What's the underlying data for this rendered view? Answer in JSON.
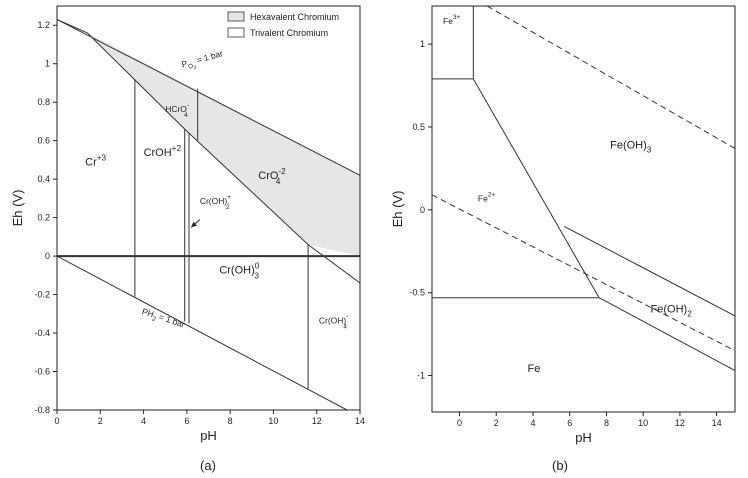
{
  "panels": [
    {
      "id": "a",
      "caption": "(a)",
      "xlabel": "pH",
      "ylabel": "Eh (V)",
      "xlim": [
        0,
        14
      ],
      "ylim": [
        -0.8,
        1.3
      ],
      "xticks": [
        "0",
        "2",
        "4",
        "6",
        "8",
        "10",
        "12",
        "14"
      ],
      "xtick_values": [
        0,
        2,
        4,
        6,
        8,
        10,
        12,
        14
      ],
      "yticks": [
        "-0.8",
        "-0.6",
        "-0.4",
        "-0.2",
        "0",
        "0.2",
        "0.4",
        "0.6",
        "0.8",
        "1",
        "1.2"
      ],
      "ytick_values": [
        -0.8,
        -0.6,
        -0.4,
        -0.2,
        0,
        0.2,
        0.4,
        0.6,
        0.8,
        1,
        1.2
      ],
      "legend": {
        "position": "top-right",
        "entries": [
          {
            "label": "Hexavalent Chromium",
            "fill": "#e6e6e6"
          },
          {
            "label": "Trivalent Chromium",
            "fill": "#ffffff"
          }
        ]
      },
      "hexavalent_region": [
        [
          1.4,
          1.16
        ],
        [
          14,
          0.42
        ],
        [
          14,
          0
        ],
        [
          11.6,
          0.06
        ],
        [
          5.9,
          0.66
        ],
        [
          1.4,
          1.16
        ]
      ],
      "lines": [
        {
          "name": "o2-line",
          "points": [
            [
              0,
              1.23
            ],
            [
              14,
              0.42
            ]
          ]
        },
        {
          "name": "hcr-boundary",
          "points": [
            [
              0,
              1.23
            ],
            [
              1.4,
              1.16
            ],
            [
              5.9,
              0.66
            ],
            [
              11.6,
              0.06
            ],
            [
              14,
              -0.14
            ]
          ]
        },
        {
          "name": "h2-line",
          "points": [
            [
              0,
              0
            ],
            [
              13.4,
              -0.8
            ]
          ]
        },
        {
          "name": "zero-line",
          "points": [
            [
              0,
              0
            ],
            [
              14,
              0
            ]
          ],
          "bold": true
        },
        {
          "name": "boundary-ph3.6",
          "points": [
            [
              3.6,
              0.92
            ],
            [
              3.6,
              -0.21
            ]
          ]
        },
        {
          "name": "boundary-ph5.9",
          "points": [
            [
              5.9,
              0.66
            ],
            [
              5.9,
              -0.34
            ]
          ]
        },
        {
          "name": "boundary-ph6.1",
          "points": [
            [
              6.1,
              0.64
            ],
            [
              6.1,
              -0.35
            ]
          ]
        },
        {
          "name": "boundary-ph6.5",
          "points": [
            [
              6.5,
              0.87
            ],
            [
              6.5,
              0.6
            ]
          ]
        },
        {
          "name": "boundary-ph11.6",
          "points": [
            [
              11.6,
              0.06
            ],
            [
              11.6,
              -0.69
            ]
          ]
        }
      ],
      "line_labels": [
        {
          "main": "P",
          "sub": "O",
          "sub2": "2",
          "rest": " = 1 bar",
          "x": 5.8,
          "y": 0.98,
          "rotate": -16
        },
        {
          "main": "PH",
          "sub": "2",
          "sub2": "",
          "rest": " = 1 bar",
          "x": 3.9,
          "y": -0.3,
          "rotate": 18
        }
      ],
      "region_labels": [
        {
          "text": "Cr",
          "sup": "+3",
          "x": 1.3,
          "y": 0.47
        },
        {
          "text": "CrOH",
          "sup": "+2",
          "x": 4.0,
          "y": 0.52
        },
        {
          "text": "HCrO",
          "sub": "4",
          "sup": "-",
          "x": 5.0,
          "y": 0.75,
          "small": true
        },
        {
          "text": "CrO",
          "sub": "4",
          "sup": "-2",
          "x": 9.3,
          "y": 0.4
        },
        {
          "text": "Cr(OH)",
          "sub": "2",
          "sup": "+",
          "x": 6.6,
          "y": 0.27,
          "small": true
        },
        {
          "text": "Cr(OH)",
          "sub": "3",
          "sup": "0",
          "x": 7.5,
          "y": -0.09
        },
        {
          "text": "Cr(OH)",
          "sub": "4",
          "sup": "-",
          "x": 12.1,
          "y": -0.35,
          "small": true
        }
      ],
      "arrow": {
        "from": [
          6.6,
          0.19
        ],
        "to": [
          6.2,
          0.15
        ]
      }
    },
    {
      "id": "b",
      "caption": "(b)",
      "xlabel": "pH",
      "ylabel": "Eh (V)",
      "xlim": [
        -1.5,
        15
      ],
      "ylim": [
        -1.22,
        1.23
      ],
      "xticks": [
        "0",
        "2",
        "4",
        "6",
        "8",
        "10",
        "12",
        "14"
      ],
      "xtick_values": [
        0,
        2,
        4,
        6,
        8,
        10,
        12,
        14
      ],
      "yticks": [
        "-1",
        "-0.5",
        "0",
        "0.5",
        "1"
      ],
      "ytick_values": [
        -1,
        -0.5,
        0,
        0.5,
        1
      ],
      "lines": [
        {
          "name": "fe3-bottom",
          "points": [
            [
              -1.5,
              0.79
            ],
            [
              0.75,
              0.79
            ]
          ]
        },
        {
          "name": "fe3-right",
          "points": [
            [
              0.75,
              0.79
            ],
            [
              0.75,
              1.23
            ]
          ]
        },
        {
          "name": "fe2-feoh3",
          "points": [
            [
              0.75,
              0.79
            ],
            [
              7.6,
              -0.53
            ]
          ]
        },
        {
          "name": "fe-fe2",
          "points": [
            [
              -1.5,
              -0.53
            ],
            [
              7.6,
              -0.53
            ]
          ]
        },
        {
          "name": "fe-feoh2",
          "points": [
            [
              7.6,
              -0.53
            ],
            [
              15,
              -0.97
            ]
          ]
        },
        {
          "name": "feoh2-feoh3",
          "points": [
            [
              5.7,
              -0.1
            ],
            [
              15,
              -0.64
            ]
          ]
        },
        {
          "name": "o2-dashed",
          "points": [
            [
              1.5,
              1.23
            ],
            [
              15,
              0.37
            ]
          ],
          "dashed": true
        },
        {
          "name": "h2-dashed",
          "points": [
            [
              -1.5,
              0.09
            ],
            [
              15,
              -0.85
            ]
          ],
          "dashed": true
        }
      ],
      "region_labels": [
        {
          "text": "Fe",
          "sup": "3+",
          "x": -0.9,
          "y": 1.12,
          "small": true
        },
        {
          "text": "Fe(OH)",
          "sub": "3",
          "x": 8.2,
          "y": 0.37
        },
        {
          "text": "Fe",
          "sup": "2+",
          "x": 1.0,
          "y": 0.05,
          "small": true
        },
        {
          "text": "Fe(OH)",
          "sub": "2",
          "x": 10.4,
          "y": -0.62
        },
        {
          "text": "Fe",
          "x": 3.7,
          "y": -0.98
        }
      ]
    }
  ]
}
